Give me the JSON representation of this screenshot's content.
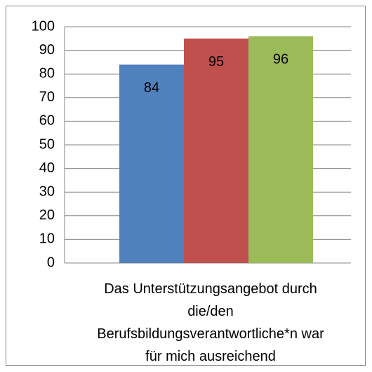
{
  "chart_data": {
    "type": "bar",
    "categories": [
      "Das Unterstützungsangebot durch die/den Berufsbildungsverantwortliche*n war für mich ausreichend"
    ],
    "series": [
      {
        "color": "#4f81bd",
        "values": [
          84
        ]
      },
      {
        "color": "#c0504d",
        "values": [
          95
        ]
      },
      {
        "color": "#9bbb59",
        "values": [
          96
        ]
      }
    ],
    "ylim": [
      0,
      100
    ],
    "yticks": [
      0,
      10,
      20,
      30,
      40,
      50,
      60,
      70,
      80,
      90,
      100
    ],
    "grid": true
  }
}
